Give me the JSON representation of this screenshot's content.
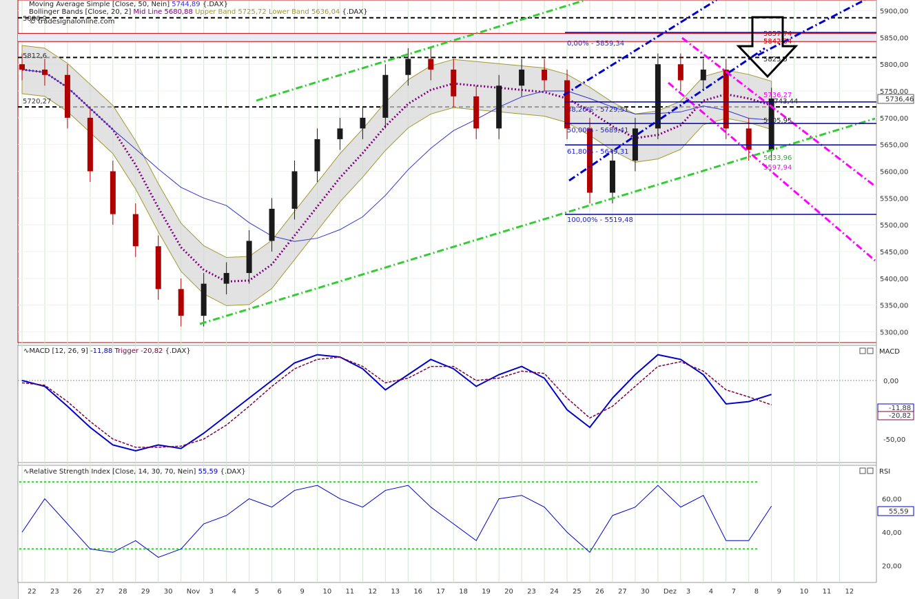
{
  "indicators": {
    "sma": {
      "label": "Moving Average Simple [Close, 50, Nein]",
      "value": "5744,89",
      "symbol": "{.DAX}"
    },
    "bb": {
      "label": "Bollinger Bands [Close, 20, 2]",
      "mid_label": "Mid Line",
      "mid": "5680,88",
      "upper_label": "Upper Band",
      "upper": "5725,72",
      "lower_label": "Lower Band",
      "lower": "5636,04",
      "symbol": "{.DAX}"
    },
    "watermark": "© tradesignalonline.com",
    "macd": {
      "label": "MACD [12, 26, 9]",
      "value": "-11,88",
      "trigger_label": "Trigger",
      "trigger": "-20,82",
      "symbol": "{.DAX}",
      "axis_title": "MACD"
    },
    "rsi": {
      "label": "Relative Strength Index [Close, 14, 30, 70, Nein]",
      "value": "55,59",
      "symbol": "{.DAX}",
      "axis_title": "RSI"
    }
  },
  "price_axis": {
    "ticks": [
      "5900,00",
      "5850,00",
      "5800,00",
      "5750,00",
      "5700,00",
      "5650,00",
      "5600,00",
      "5550,00",
      "5500,00",
      "5450,00",
      "5400,00",
      "5350,00",
      "5300,00"
    ],
    "last_price": "5736,46"
  },
  "macd_axis": {
    "ticks": [
      "0,00",
      "-50,00"
    ],
    "last_macd": "-11,88",
    "last_trigger": "-20,82"
  },
  "rsi_axis": {
    "ticks": [
      "60,00",
      "40,00",
      "20,00"
    ],
    "last": "55,59"
  },
  "time_axis": [
    "22",
    "23",
    "26",
    "27",
    "28",
    "29",
    "30",
    "Nov",
    "3",
    "4",
    "5",
    "6",
    "9",
    "10",
    "11",
    "12",
    "13",
    "16",
    "17",
    "18",
    "19",
    "20",
    "23",
    "24",
    "25",
    "26",
    "27",
    "30",
    "Dez",
    "3",
    "4",
    "7",
    "8",
    "9",
    "10",
    "11",
    "12"
  ],
  "annotations": {
    "left_label_1": "5812,6",
    "left_label_2": "5886,9",
    "left_label_3": "5720,27",
    "fib": [
      "0,00% - 5859,34",
      "38,20% - 5729,51",
      "50,00% - 5689,41",
      "61,80% - 5649,31",
      "100,00% - 5519,48"
    ],
    "price_marks": [
      "5857,74",
      "5842,34",
      "5825,5",
      "5736,27",
      "5743,44",
      "5705,95",
      "5633,96",
      "5597,94"
    ]
  },
  "colors": {
    "price_up": "#1a1a1a",
    "price_down": "#b00000",
    "bands_fill": "#d6d6d6",
    "bands_line": "#a09a30",
    "mid_line": "#800080",
    "sma_line": "#3333cc",
    "channel_green": "#33cc33",
    "channel_blue": "#0000cc",
    "channel_magenta": "#ff00ff",
    "macd_line": "#0000cc",
    "macd_trigger": "#800040",
    "rsi_line": "#0000cc",
    "rsi_levels": "#33cc33",
    "grid": "#cfe6cf",
    "resistance": "#cc0000"
  },
  "chart_data": [
    {
      "type": "candlestick",
      "title": "",
      "xlabel": "",
      "ylabel": "",
      "ylim": [
        5280,
        5920
      ],
      "x": [
        "22",
        "23",
        "26",
        "27",
        "28",
        "29",
        "30",
        "3",
        "4",
        "5",
        "6",
        "9",
        "10",
        "11",
        "12",
        "13",
        "16",
        "17",
        "18",
        "19",
        "20",
        "23",
        "24",
        "25",
        "26",
        "27",
        "30",
        "1",
        "3",
        "4",
        "7",
        "8",
        "9",
        "10"
      ],
      "close": [
        5790,
        5780,
        5700,
        5600,
        5520,
        5460,
        5380,
        5330,
        5390,
        5410,
        5470,
        5530,
        5600,
        5660,
        5680,
        5700,
        5780,
        5810,
        5790,
        5740,
        5680,
        5760,
        5790,
        5770,
        5680,
        5560,
        5620,
        5680,
        5800,
        5770,
        5790,
        5680,
        5640,
        5736
      ],
      "series": [
        {
          "name": "Moving Average Simple [Close, 50, Nein]",
          "last": 5744.89
        },
        {
          "name": "Bollinger Bands Mid Line",
          "last": 5680.88
        },
        {
          "name": "Upper Band",
          "last": 5725.72
        },
        {
          "name": "Lower Band",
          "last": 5636.04
        }
      ]
    },
    {
      "type": "line",
      "title": "",
      "ylim": [
        -70,
        30
      ],
      "series": [
        {
          "name": "MACD",
          "values": [
            0,
            -5,
            -22,
            -40,
            -55,
            -60,
            -55,
            -58,
            -45,
            -30,
            -15,
            0,
            15,
            22,
            20,
            10,
            -8,
            5,
            18,
            10,
            -5,
            5,
            12,
            2,
            -25,
            -40,
            -15,
            5,
            22,
            18,
            5,
            -20,
            -18,
            -11.88
          ]
        },
        {
          "name": "Trigger",
          "values": [
            -2,
            -4,
            -18,
            -35,
            -50,
            -57,
            -57,
            -56,
            -50,
            -38,
            -22,
            -5,
            10,
            18,
            20,
            12,
            -2,
            2,
            12,
            12,
            0,
            2,
            8,
            6,
            -15,
            -32,
            -22,
            -5,
            12,
            16,
            8,
            -8,
            -14,
            -20.82
          ]
        }
      ]
    },
    {
      "type": "line",
      "title": "",
      "ylim": [
        10,
        80
      ],
      "levels": [
        30,
        70
      ],
      "series": [
        {
          "name": "RSI",
          "values": [
            40,
            60,
            45,
            30,
            28,
            35,
            25,
            30,
            45,
            50,
            60,
            55,
            65,
            68,
            60,
            55,
            65,
            68,
            55,
            45,
            35,
            60,
            62,
            55,
            40,
            28,
            50,
            55,
            68,
            55,
            62,
            35,
            35,
            55.59
          ]
        }
      ]
    }
  ]
}
